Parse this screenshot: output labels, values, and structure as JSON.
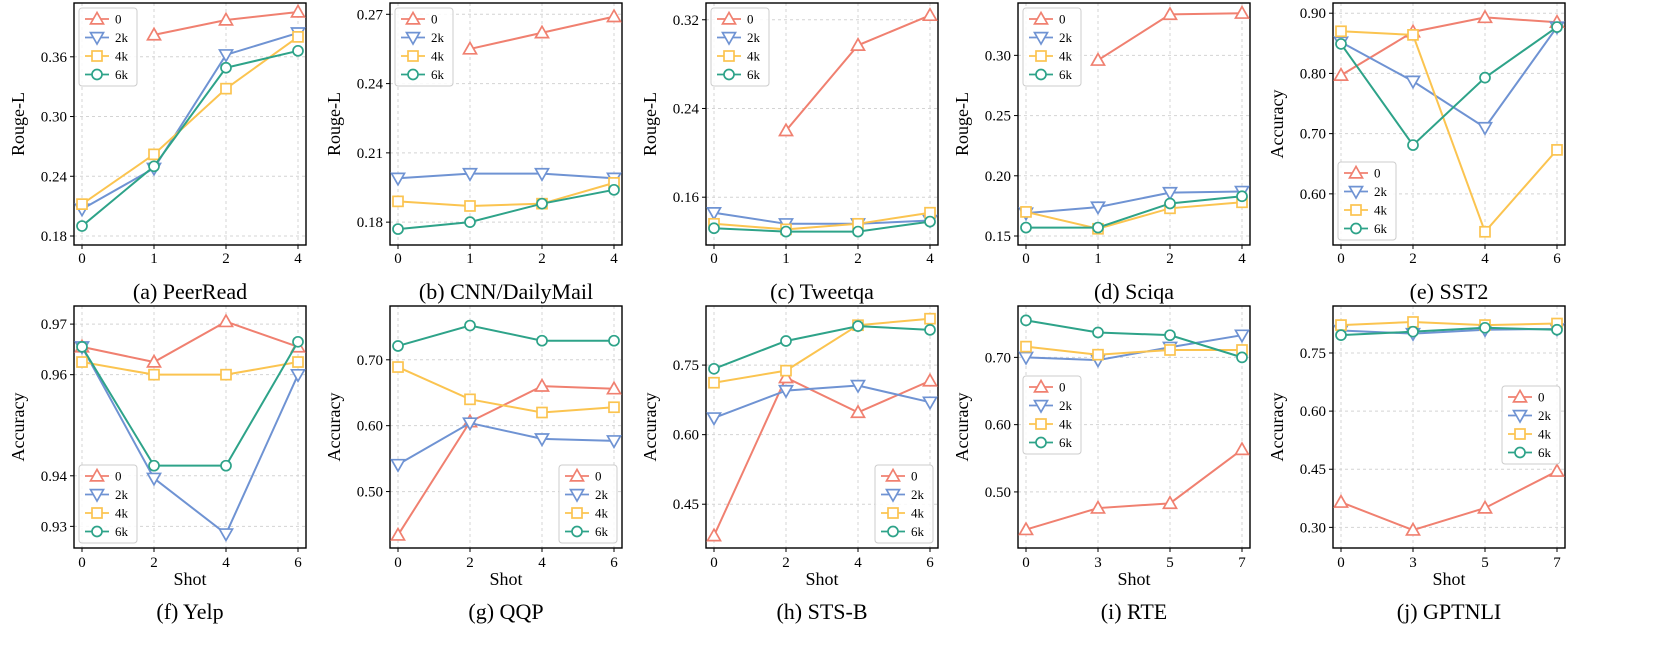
{
  "chart_data": [
    {
      "type": "line",
      "caption": "(a) PeerRead",
      "xlabel": "",
      "ylabel": "Rouge-L",
      "x": [
        0,
        1,
        2,
        4
      ],
      "xticks": [
        0,
        1,
        2,
        4
      ],
      "ylim": [
        0.18,
        0.405
      ],
      "yticks": [
        0.18,
        0.24,
        0.3,
        0.36
      ],
      "ytick_labels": [
        "0.18",
        "0.24",
        "0.30",
        "0.36"
      ],
      "legend_loc": "top-left",
      "series": [
        {
          "name": "0",
          "values": [
            null,
            0.382,
            0.397,
            0.405
          ]
        },
        {
          "name": "2k",
          "values": [
            0.207,
            0.248,
            0.362,
            0.384
          ]
        },
        {
          "name": "4k",
          "values": [
            0.212,
            0.262,
            0.328,
            0.38
          ]
        },
        {
          "name": "6k",
          "values": [
            0.19,
            0.25,
            0.349,
            0.366
          ]
        }
      ]
    },
    {
      "type": "line",
      "caption": "(b) CNN/DailyMail",
      "xlabel": "",
      "ylabel": "Rouge-L",
      "x": [
        0,
        1,
        2,
        4
      ],
      "xticks": [
        0,
        1,
        2,
        4
      ],
      "ylim": [
        0.174,
        0.271
      ],
      "yticks": [
        0.18,
        0.21,
        0.24,
        0.27
      ],
      "ytick_labels": [
        "0.18",
        "0.21",
        "0.24",
        "0.27"
      ],
      "legend_loc": "top-left",
      "series": [
        {
          "name": "0",
          "values": [
            null,
            0.255,
            0.262,
            0.269
          ]
        },
        {
          "name": "2k",
          "values": [
            0.199,
            0.201,
            0.201,
            0.199
          ]
        },
        {
          "name": "4k",
          "values": [
            0.189,
            0.187,
            0.188,
            0.197
          ]
        },
        {
          "name": "6k",
          "values": [
            0.177,
            0.18,
            0.188,
            0.194
          ]
        }
      ]
    },
    {
      "type": "line",
      "caption": "(c) Tweetqa",
      "xlabel": "",
      "ylabel": "Rouge-L",
      "x": [
        0,
        1,
        2,
        4
      ],
      "xticks": [
        0,
        1,
        2,
        4
      ],
      "ylim": [
        0.125,
        0.327
      ],
      "yticks": [
        0.16,
        0.24,
        0.32
      ],
      "ytick_labels": [
        "0.16",
        "0.24",
        "0.32"
      ],
      "legend_loc": "top-left",
      "series": [
        {
          "name": "0",
          "values": [
            null,
            0.22,
            0.297,
            0.324
          ]
        },
        {
          "name": "2k",
          "values": [
            0.146,
            0.136,
            0.136,
            0.139
          ]
        },
        {
          "name": "4k",
          "values": [
            0.136,
            0.131,
            0.136,
            0.146
          ]
        },
        {
          "name": "6k",
          "values": [
            0.132,
            0.129,
            0.129,
            0.138
          ]
        }
      ]
    },
    {
      "type": "line",
      "caption": "(d) Sciqa",
      "xlabel": "",
      "ylabel": "Rouge-L",
      "x": [
        0,
        1,
        2,
        4
      ],
      "xticks": [
        0,
        1,
        2,
        4
      ],
      "ylim": [
        0.15,
        0.336
      ],
      "yticks": [
        0.15,
        0.2,
        0.25,
        0.3
      ],
      "ytick_labels": [
        "0.15",
        "0.20",
        "0.25",
        "0.30"
      ],
      "legend_loc": "top-left",
      "series": [
        {
          "name": "0",
          "values": [
            null,
            0.296,
            0.334,
            0.335
          ]
        },
        {
          "name": "2k",
          "values": [
            0.169,
            0.174,
            0.186,
            0.187
          ]
        },
        {
          "name": "4k",
          "values": [
            0.17,
            0.156,
            0.173,
            0.178
          ]
        },
        {
          "name": "6k",
          "values": [
            0.157,
            0.157,
            0.177,
            0.183
          ]
        }
      ]
    },
    {
      "type": "line",
      "caption": "(e) SST2",
      "xlabel": "",
      "ylabel": "Accuracy",
      "x": [
        0,
        2,
        4,
        6
      ],
      "xticks": [
        0,
        2,
        4,
        6
      ],
      "ylim": [
        0.53,
        0.902
      ],
      "yticks": [
        0.6,
        0.7,
        0.8,
        0.9
      ],
      "ytick_labels": [
        "0.60",
        "0.70",
        "0.80",
        "0.90"
      ],
      "legend_loc": "bottom-left",
      "series": [
        {
          "name": "0",
          "values": [
            0.797,
            0.869,
            0.893,
            0.885
          ]
        },
        {
          "name": "2k",
          "values": [
            0.852,
            0.787,
            0.71,
            0.877
          ]
        },
        {
          "name": "4k",
          "values": [
            0.87,
            0.864,
            0.537,
            0.673
          ]
        },
        {
          "name": "6k",
          "values": [
            0.849,
            0.681,
            0.793,
            0.877
          ]
        }
      ]
    },
    {
      "type": "line",
      "caption": "(f) Yelp",
      "xlabel": "Shot",
      "ylabel": "Accuracy",
      "x": [
        0,
        2,
        4,
        6
      ],
      "xticks": [
        0,
        2,
        4,
        6
      ],
      "ylim": [
        0.9275,
        0.9718
      ],
      "yticks": [
        0.93,
        0.94,
        0.96,
        0.97
      ],
      "ytick_labels": [
        "0.93",
        "0.94",
        "0.96",
        "0.97"
      ],
      "legend_loc": "bottom-left",
      "series": [
        {
          "name": "0",
          "values": [
            0.9655,
            0.9625,
            0.9705,
            0.9655
          ]
        },
        {
          "name": "2k",
          "values": [
            0.9655,
            0.9395,
            0.9285,
            0.96
          ]
        },
        {
          "name": "4k",
          "values": [
            0.9625,
            0.96,
            0.96,
            0.9625
          ]
        },
        {
          "name": "6k",
          "values": [
            0.9655,
            0.942,
            0.942,
            0.9665
          ]
        }
      ]
    },
    {
      "type": "line",
      "caption": "(g) QQP",
      "xlabel": "Shot",
      "ylabel": "Accuracy",
      "x": [
        0,
        2,
        4,
        6
      ],
      "xticks": [
        0,
        2,
        4,
        6
      ],
      "ylim": [
        0.428,
        0.768
      ],
      "yticks": [
        0.5,
        0.6,
        0.7
      ],
      "ytick_labels": [
        "0.50",
        "0.60",
        "0.70"
      ],
      "legend_loc": "bottom-right",
      "series": [
        {
          "name": "0",
          "values": [
            0.434,
            0.606,
            0.66,
            0.656
          ]
        },
        {
          "name": "2k",
          "values": [
            0.541,
            0.604,
            0.58,
            0.577
          ]
        },
        {
          "name": "4k",
          "values": [
            0.689,
            0.64,
            0.62,
            0.628
          ]
        },
        {
          "name": "6k",
          "values": [
            0.721,
            0.752,
            0.729,
            0.729
          ]
        }
      ]
    },
    {
      "type": "line",
      "caption": "(h) STS-B",
      "xlabel": "Shot",
      "ylabel": "Accuracy",
      "x": [
        0,
        2,
        4,
        6
      ],
      "xticks": [
        0,
        2,
        4,
        6
      ],
      "ylim": [
        0.375,
        0.858
      ],
      "yticks": [
        0.45,
        0.6,
        0.75
      ],
      "ytick_labels": [
        "0.45",
        "0.60",
        "0.75"
      ],
      "legend_loc": "bottom-right",
      "series": [
        {
          "name": "0",
          "values": [
            0.382,
            0.723,
            0.648,
            0.716
          ]
        },
        {
          "name": "2k",
          "values": [
            0.636,
            0.695,
            0.706,
            0.67
          ]
        },
        {
          "name": "4k",
          "values": [
            0.712,
            0.738,
            0.836,
            0.85
          ]
        },
        {
          "name": "6k",
          "values": [
            0.742,
            0.802,
            0.834,
            0.826
          ]
        }
      ]
    },
    {
      "type": "line",
      "caption": "(i) RTE",
      "xlabel": "Shot",
      "ylabel": "Accuracy",
      "x": [
        0,
        3,
        5,
        7
      ],
      "xticks": [
        0,
        3,
        5,
        7
      ],
      "ylim": [
        0.43,
        0.763
      ],
      "yticks": [
        0.5,
        0.6,
        0.7
      ],
      "ytick_labels": [
        "0.50",
        "0.60",
        "0.70"
      ],
      "legend_loc": "middle-left",
      "series": [
        {
          "name": "0",
          "values": [
            0.444,
            0.476,
            0.483,
            0.563
          ]
        },
        {
          "name": "2k",
          "values": [
            0.7,
            0.696,
            0.715,
            0.733
          ]
        },
        {
          "name": "4k",
          "values": [
            0.716,
            0.704,
            0.711,
            0.711
          ]
        },
        {
          "name": "6k",
          "values": [
            0.755,
            0.737,
            0.733,
            0.7
          ]
        }
      ]
    },
    {
      "type": "line",
      "caption": "(j) GPTNLI",
      "xlabel": "Shot",
      "ylabel": "Accuracy",
      "x": [
        0,
        3,
        5,
        7
      ],
      "xticks": [
        0,
        3,
        5,
        7
      ],
      "ylim": [
        0.27,
        0.848
      ],
      "yticks": [
        0.3,
        0.45,
        0.6,
        0.75
      ],
      "ytick_labels": [
        "0.30",
        "0.45",
        "0.60",
        "0.75"
      ],
      "legend_loc": "middle-right",
      "series": [
        {
          "name": "0",
          "values": [
            0.365,
            0.293,
            0.35,
            0.445
          ]
        },
        {
          "name": "2k",
          "values": [
            0.808,
            0.8,
            0.81,
            0.812
          ]
        },
        {
          "name": "4k",
          "values": [
            0.822,
            0.83,
            0.822,
            0.826
          ]
        },
        {
          "name": "6k",
          "values": [
            0.796,
            0.805,
            0.815,
            0.81
          ]
        }
      ]
    }
  ],
  "series_style": {
    "0": {
      "color": "#f08070",
      "marker": "triangle-up"
    },
    "2k": {
      "color": "#6f93d3",
      "marker": "triangle-down"
    },
    "4k": {
      "color": "#fbc450",
      "marker": "square"
    },
    "6k": {
      "color": "#2ea389",
      "marker": "circle"
    }
  }
}
